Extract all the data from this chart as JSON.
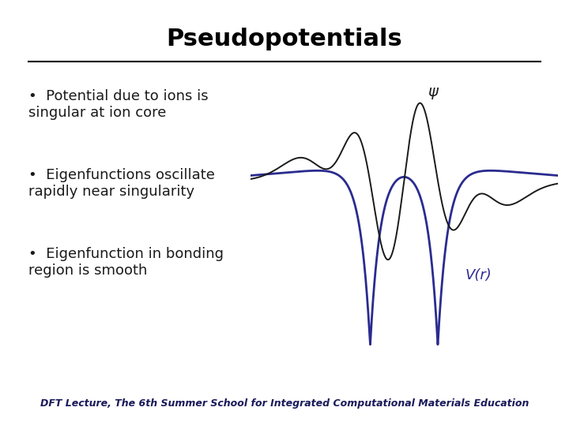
{
  "title": "Pseudopotentials",
  "title_fontsize": 22,
  "title_fontweight": "bold",
  "background_color": "#ffffff",
  "line_color": "#000000",
  "hr_color": "#000000",
  "bullet_points": [
    "Potential due to ions is\nsingular at ion core",
    "Eigenfunctions oscillate\nrapidly near singularity",
    "Eigenfunction in bonding\nregion is smooth"
  ],
  "bullet_fontsize": 13.0,
  "psi_label": "ψ",
  "vr_label": "V(r)",
  "psi_color": "#1a1a1a",
  "vr_color": "#2b2b8f",
  "footer_text": "DFT Lecture, The 6",
  "footer_sup": "th",
  "footer_rest": " Summer School for Integrated Computational Materials Education",
  "footer_fontsize": 9
}
